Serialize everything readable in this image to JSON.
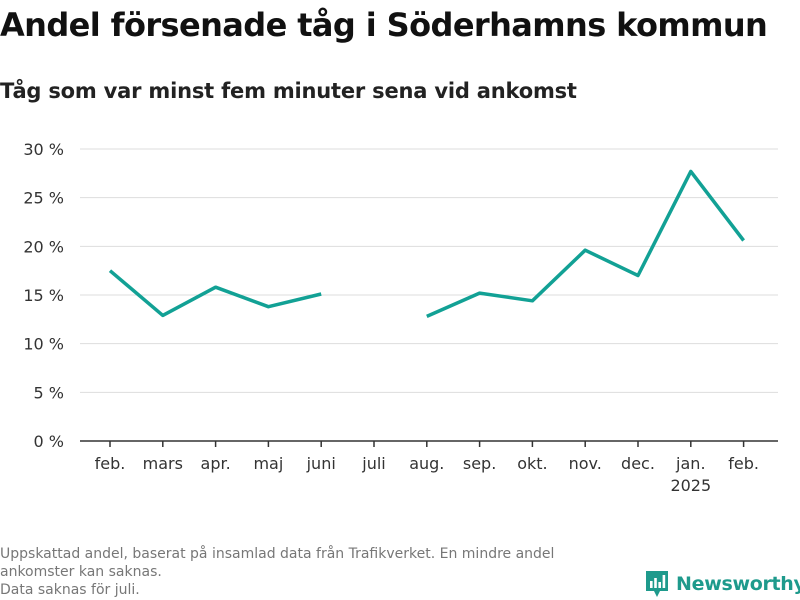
{
  "title": "Andel försenade tåg i Söderhamns kommun",
  "subtitle": "Tåg som var minst fem minuter sena vid ankomst",
  "footnote": {
    "line1": "Uppskattad andel, baserat på insamlad data från Trafikverket. En mindre andel",
    "line2": "ankomster kan saknas.",
    "line3": "Data saknas för juli."
  },
  "brand": {
    "name": "Newsworthy",
    "icon": "newsworthy-logo-icon",
    "color": "#1e9a8c"
  },
  "chart_data": {
    "type": "line",
    "categories": [
      "feb.",
      "mars",
      "apr.",
      "maj",
      "juni",
      "juli",
      "aug.",
      "sep.",
      "okt.",
      "nov.",
      "dec.",
      "jan.",
      "feb."
    ],
    "category_sublabels": [
      "",
      "",
      "",
      "",
      "",
      "",
      "",
      "",
      "",
      "",
      "",
      "2025",
      ""
    ],
    "series": [
      {
        "values": [
          17.5,
          12.9,
          15.8,
          13.8,
          15.1,
          null,
          12.8,
          15.2,
          14.4,
          19.6,
          17.0,
          27.7,
          20.6
        ],
        "color": "#12a195"
      }
    ],
    "y_ticks": [
      0,
      5,
      10,
      15,
      20,
      25,
      30
    ],
    "y_tick_labels": [
      "0 %",
      "5 %",
      "10 %",
      "15 %",
      "20 %",
      "25 %",
      "30 %"
    ],
    "ylim": [
      0,
      30
    ],
    "grid": "horizontal",
    "legend": "none",
    "grid_color": "#dddddd",
    "axis_color": "#333333"
  }
}
